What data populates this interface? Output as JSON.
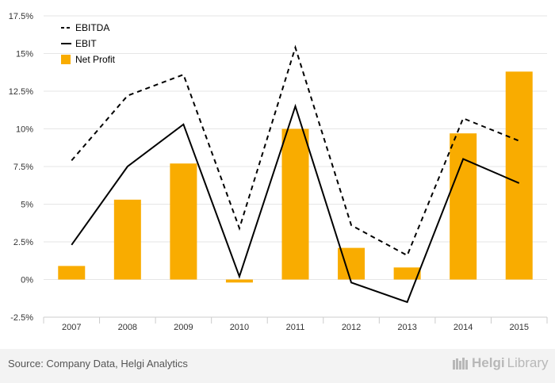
{
  "chart_data": {
    "type": "bar",
    "categories": [
      "2007",
      "2008",
      "2009",
      "2010",
      "2011",
      "2012",
      "2013",
      "2014",
      "2015"
    ],
    "series": [
      {
        "name": "EBITDA",
        "kind": "line",
        "style": "dashed",
        "values": [
          7.9,
          12.2,
          13.6,
          3.4,
          15.4,
          3.6,
          1.6,
          10.7,
          9.2
        ]
      },
      {
        "name": "EBIT",
        "kind": "line",
        "style": "solid",
        "values": [
          2.3,
          7.5,
          10.3,
          0.2,
          11.5,
          -0.2,
          -1.5,
          8.0,
          6.4
        ]
      },
      {
        "name": "Net Profit",
        "kind": "bar",
        "values": [
          0.9,
          5.3,
          7.7,
          -0.2,
          10.0,
          2.1,
          0.8,
          9.7,
          13.8
        ]
      }
    ],
    "ylim": [
      -2.5,
      17.5
    ],
    "yticks": [
      -2.5,
      0,
      2.5,
      5,
      7.5,
      10,
      12.5,
      15,
      17.5
    ],
    "ytick_labels": [
      "-2.5%",
      "0%",
      "2.5%",
      "5%",
      "7.5%",
      "10%",
      "12.5%",
      "15%",
      "17.5%"
    ],
    "legend": [
      "EBITDA",
      "EBIT",
      "Net Profit"
    ],
    "legend_position": "top-left",
    "grid": true,
    "colors": {
      "bar": "#f9ac00",
      "ebitda": "#000000",
      "ebit": "#000000",
      "grid": "#e6e6e6",
      "axis": "#cccccc"
    }
  },
  "footer": {
    "source": "Source: Company Data, Helgi Analytics",
    "brand_main": "Helgi",
    "brand_sub": "Library"
  }
}
